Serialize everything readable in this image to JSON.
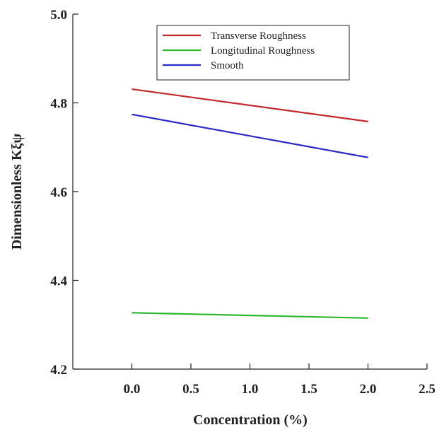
{
  "chart_data": {
    "type": "line",
    "xlabel": "Concentration (%)",
    "ylabel": "Dimensionless Kξψ",
    "x": [
      0,
      2
    ],
    "series": [
      {
        "name": "Transverse Roughness",
        "color": "#c0282c",
        "values": [
          4.831,
          4.758
        ]
      },
      {
        "name": "Longitudinal Roughness",
        "color": "#2cb82c",
        "values": [
          4.327,
          4.315
        ]
      },
      {
        "name": "Smooth",
        "color": "#2828c8",
        "values": [
          4.774,
          4.677
        ]
      }
    ],
    "xlim": [
      -0.5,
      2.5
    ],
    "xticks": [
      {
        "value": 0,
        "label": "0.0"
      },
      0.5,
      {
        "value": 1,
        "label": "1.0"
      },
      1.5,
      {
        "value": 2,
        "label": "2.0"
      },
      2.5
    ],
    "ylim": [
      4.2,
      5.0
    ],
    "yticks": [
      4.2,
      4.4,
      4.6,
      4.8,
      {
        "value": 5,
        "label": "5.0"
      }
    ],
    "legend": "upper center"
  }
}
